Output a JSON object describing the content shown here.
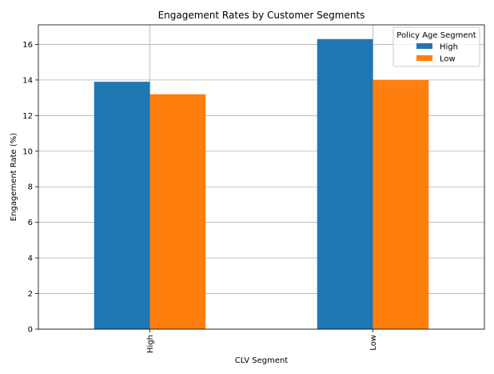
{
  "chart_data": {
    "type": "bar",
    "title": "Engagement Rates by Customer Segments",
    "xlabel": "CLV Segment",
    "ylabel": "Engagement Rate (%)",
    "categories": [
      "High",
      "Low"
    ],
    "series": [
      {
        "name": "High",
        "values": [
          13.9,
          16.3
        ],
        "color": "#1f77b4"
      },
      {
        "name": "Low",
        "values": [
          13.2,
          14.0
        ],
        "color": "#ff7f0e"
      }
    ],
    "ylim": [
      0,
      17.1
    ],
    "yticks": [
      "0",
      "2",
      "4",
      "6",
      "8",
      "10",
      "12",
      "14",
      "16"
    ],
    "grid": true,
    "legend": {
      "title": "Policy Age Segment",
      "placement": "top-right"
    }
  }
}
